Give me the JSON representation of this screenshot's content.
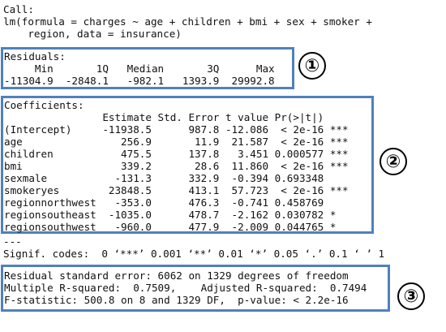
{
  "call": {
    "line1": "Call:",
    "line2": "lm(formula = charges ~ age + children + bmi + sex + smoker +",
    "line3": "    region, data = insurance)"
  },
  "residuals": {
    "title": "Residuals:",
    "header": "     Min       1Q   Median       3Q      Max",
    "values": "-11304.9  -2848.1   -982.1   1393.9  29992.8"
  },
  "coefficients": {
    "title": "Coefficients:",
    "header": "                Estimate Std. Error t value Pr(>|t|)",
    "rows": [
      "(Intercept)     -11938.5      987.8 -12.086  < 2e-16 ***",
      "age                256.9       11.9  21.587  < 2e-16 ***",
      "children           475.5      137.8   3.451 0.000577 ***",
      "bmi                339.2       28.6  11.860  < 2e-16 ***",
      "sexmale           -131.3      332.9  -0.394 0.693348",
      "smokeryes        23848.5      413.1  57.723  < 2e-16 ***",
      "regionnorthwest   -353.0      476.3  -0.741 0.458769",
      "regionsoutheast  -1035.0      478.7  -2.162 0.030782 *",
      "regionsouthwest   -960.0      477.9  -2.009 0.044765 *"
    ]
  },
  "separator": "---",
  "signif": "Signif. codes:  0 ‘***’ 0.001 ‘**’ 0.01 ‘*’ 0.05 ‘.’ 0.1 ‘ ’ 1",
  "summary": {
    "line1": "Residual standard error: 6062 on 1329 degrees of freedom",
    "line2": "Multiple R-squared:  0.7509,    Adjusted R-squared:  0.7494",
    "line3": "F-statistic: 500.8 on 8 and 1329 DF,  p-value: < 2.2e-16"
  },
  "badges": [
    "①",
    "②",
    "③"
  ],
  "colors": {
    "box_border": "#4f81bd",
    "text": "#111111"
  }
}
